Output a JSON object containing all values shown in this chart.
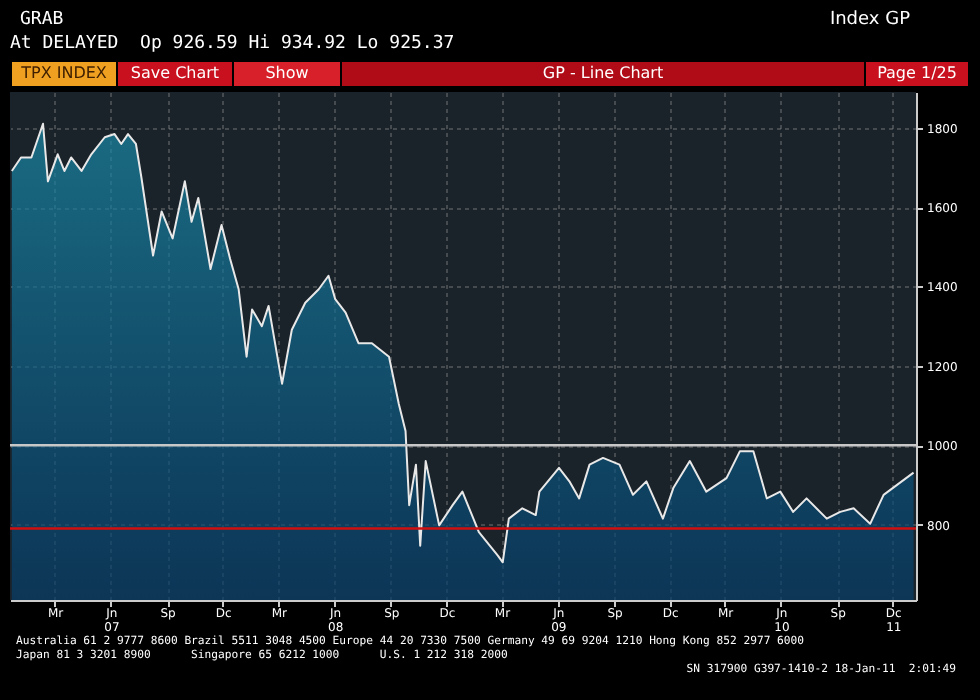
{
  "chart_data": {
    "type": "area",
    "title": "GP - Line Chart",
    "annotations": [
      "GRAB",
      "At DELAYED  Op 926.59 Hi 934.92 Lo 925.37",
      "Index GP",
      "TPX INDEX",
      "Save Chart",
      "Show",
      "Page 1/25",
      "Australia 61 2 9777 8600 Brazil 5511 3048 4500 Europe 44 20 7330 7500 Germany 49 69 9204 1210 Hong Kong 852 2977 6000",
      "Japan 81 3 3201 8900      Singapore 65 6212 1000      U.S. 1 212 318 2000",
      "SN 317900 G397-1410-2 18-Jan-11  2:01:49"
    ],
    "x": [
      "2007-01-04",
      "2007-01-19",
      "2007-02-05",
      "2007-02-24",
      "2007-03-04",
      "2007-03-20",
      "2007-03-31",
      "2007-04-11",
      "2007-04-28",
      "2007-05-14",
      "2007-06-05",
      "2007-06-21",
      "2007-07-02",
      "2007-07-13",
      "2007-07-26",
      "2007-08-04",
      "2007-08-23",
      "2007-09-06",
      "2007-09-24",
      "2007-10-14",
      "2007-10-25",
      "2007-11-05",
      "2007-11-25",
      "2007-12-13",
      "2007-12-27",
      "2008-01-10",
      "2008-01-23",
      "2008-02-01",
      "2008-02-17",
      "2008-02-28",
      "2008-03-21",
      "2008-04-06",
      "2008-04-28",
      "2008-05-20",
      "2008-06-05",
      "2008-06-16",
      "2008-07-03",
      "2008-07-24",
      "2008-08-15",
      "2008-09-12",
      "2008-09-28",
      "2008-10-09",
      "2008-10-15",
      "2008-10-26",
      "2008-11-02",
      "2008-11-11",
      "2008-12-03",
      "2008-12-25",
      "2009-01-10",
      "2009-02-06",
      "2009-03-09",
      "2009-03-17",
      "2009-03-27",
      "2009-04-18",
      "2009-05-10",
      "2009-05-16",
      "2009-06-17",
      "2009-07-04",
      "2009-07-20",
      "2009-08-06",
      "2009-08-28",
      "2009-09-24",
      "2009-10-16",
      "2009-11-07",
      "2009-12-04",
      "2009-12-21",
      "2010-01-17",
      "2010-02-13",
      "2010-03-18",
      "2010-04-09",
      "2010-05-01",
      "2010-05-23",
      "2010-06-14",
      "2010-07-05",
      "2010-07-27",
      "2010-08-29",
      "2010-09-20",
      "2010-10-12",
      "2010-11-08",
      "2010-11-30",
      "2010-12-22",
      "2011-01-18"
    ],
    "series": [
      {
        "color": "#e8e8e8",
        "values": [
          1691,
          1725,
          1725,
          1810,
          1665,
          1733,
          1691,
          1725,
          1691,
          1733,
          1776,
          1784,
          1759,
          1784,
          1759,
          1674,
          1478,
          1589,
          1521,
          1665,
          1563,
          1623,
          1444,
          1555,
          1470,
          1393,
          1223,
          1342,
          1300,
          1351,
          1155,
          1291,
          1359,
          1393,
          1427,
          1368,
          1334,
          1257,
          1257,
          1223,
          1104,
          1036,
          849,
          951,
          747,
          960,
          798,
          849,
          883,
          781,
          722,
          705,
          815,
          841,
          824,
          883,
          943,
          909,
          866,
          951,
          968,
          951,
          875,
          909,
          815,
          892,
          960,
          883,
          917,
          985,
          985,
          866,
          883,
          832,
          866,
          815,
          832,
          841,
          802,
          875,
          900,
          931
        ]
      }
    ],
    "xlim": [
      "2007-01-01",
      "2011-01-22"
    ],
    "xticks": [
      {
        "value": "2007-03-15",
        "label": "Mr"
      },
      {
        "value": "2007-06-15",
        "label": "Jn\n07"
      },
      {
        "value": "2007-09-15",
        "label": "Sp"
      },
      {
        "value": "2007-12-15",
        "label": "Dc"
      },
      {
        "value": "2008-03-15",
        "label": "Mr"
      },
      {
        "value": "2008-06-15",
        "label": "Jn\n08"
      },
      {
        "value": "2008-09-15",
        "label": "Sp"
      },
      {
        "value": "2008-12-15",
        "label": "Dc"
      },
      {
        "value": "2009-03-15",
        "label": "Mr"
      },
      {
        "value": "2009-06-15",
        "label": "Jn\n09"
      },
      {
        "value": "2009-09-15",
        "label": "Sp"
      },
      {
        "value": "2009-12-15",
        "label": "Dc"
      },
      {
        "value": "2010-03-15",
        "label": "Mr"
      },
      {
        "value": "2010-06-15",
        "label": "Jn\n10"
      },
      {
        "value": "2010-09-15",
        "label": "Sp"
      },
      {
        "value": "2010-12-15",
        "label": "Dc\n11"
      }
    ],
    "ylim": [
      610,
      1890
    ],
    "yticks": [
      800,
      1000,
      1200,
      1400,
      1600,
      1800
    ],
    "ref_lines": [
      {
        "axis": "y",
        "value": 1000,
        "color": "#c8c8c8"
      },
      {
        "axis": "y",
        "value": 790,
        "color": "#d01010"
      }
    ],
    "grid": true
  }
}
